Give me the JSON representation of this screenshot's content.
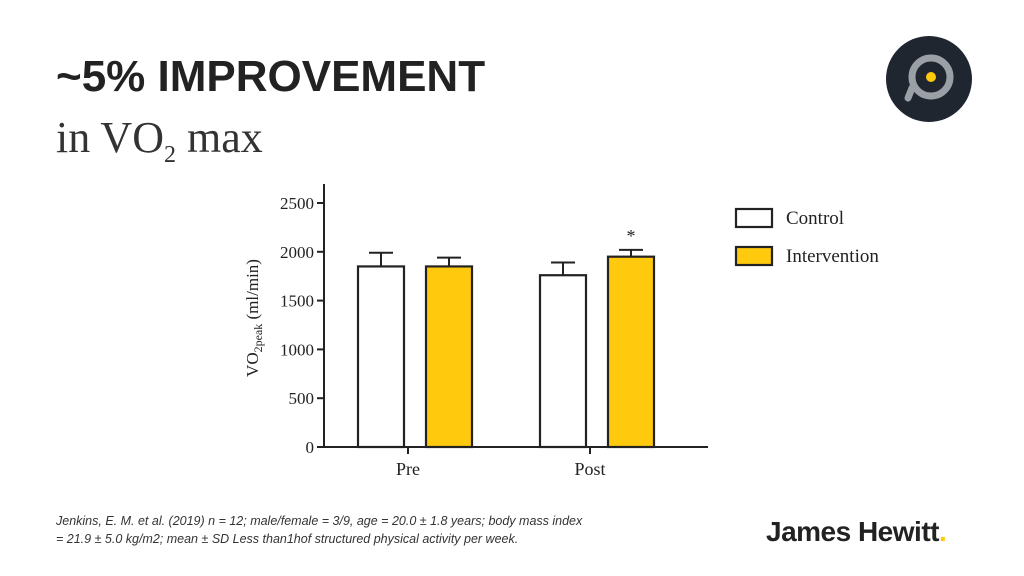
{
  "slide": {
    "title_line1": "~5% IMPROVEMENT",
    "title_line2_prefix": "in VO",
    "title_line2_sub": "2",
    "title_line2_suffix": " max",
    "footnote_line1": " Jenkins, E. M. et al. (2019)  n = 12; male/female = 3/9, age = 20.0 ± 1.8 years; body mass index",
    "footnote_line2": "= 21.9 ± 5.0 kg/m2; mean ± SD Less than1hof structured physical activity per week.",
    "brand_name": "James Hewitt",
    "brand_dot": "."
  },
  "logo": {
    "icon": "target-circle-icon",
    "dark": "#1F2630",
    "ring": "#9AA0A6",
    "dot": "#FFC90E"
  },
  "colors": {
    "control": "#FFFFFF",
    "intervention": "#FFC90E",
    "stroke": "#222222"
  },
  "chart_data": {
    "type": "bar",
    "categories": [
      "Pre",
      "Post"
    ],
    "series": [
      {
        "name": "Control",
        "values": [
          1850,
          1760
        ],
        "errors": [
          140,
          130
        ]
      },
      {
        "name": "Intervention",
        "values": [
          1850,
          1950
        ],
        "errors": [
          90,
          70
        ]
      }
    ],
    "ylabel_prefix": "VO",
    "ylabel_sub": "2peak",
    "ylabel_suffix": " (ml/min)",
    "yticks": [
      0,
      500,
      1000,
      1500,
      2000,
      2500
    ],
    "ylim": [
      0,
      2600
    ],
    "annotations": [
      {
        "text": "*",
        "category": "Post",
        "series": "Intervention"
      }
    ],
    "legend_position": "right",
    "grid": false
  }
}
